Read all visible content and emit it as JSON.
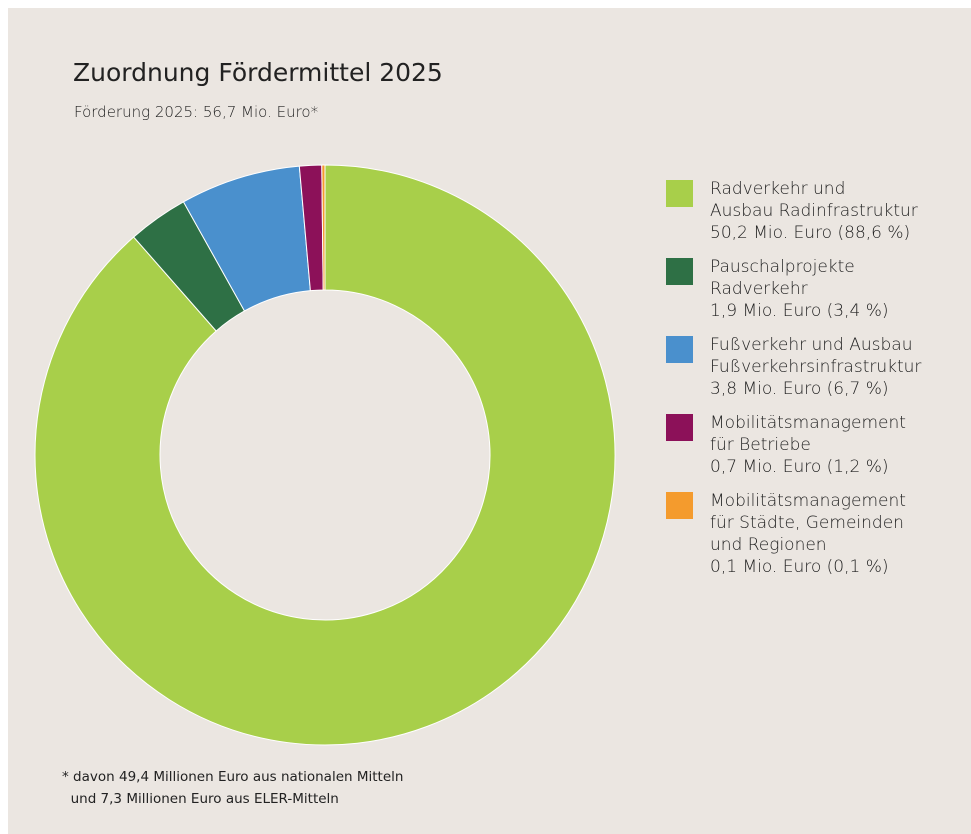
{
  "chart_data": {
    "type": "donut",
    "title": "Zuordnung Fördermittel 2025",
    "subtitle": "Förderung 2025: 56,7 Mio. Euro*",
    "series": [
      {
        "name": "Radverkehr und\nAusbau Radinfrastruktur",
        "color": "#a8cf4a"
      },
      {
        "name": "Pauschalprojekte\nRadverkehr",
        "color": "#2e7045"
      },
      {
        "name": "Fußverkehr und Ausbau\nFußverkehrsinfrastruktur",
        "color": "#4a90cd"
      },
      {
        "name": "Mobilitätsmanagement\nfür Betriebe",
        "color": "#8c1159"
      },
      {
        "name": "Mobilitätsmanagement\nfür Städte, Gemeinden\nund Regionen",
        "color": "#f49b2d"
      }
    ],
    "values": [
      50.2,
      1.9,
      3.8,
      0.7,
      0.1
    ],
    "value_labels": [
      "50,2 Mio. Euro (88,6 %)",
      "1,9 Mio. Euro (3,4 %)",
      "3,8 Mio. Euro (6,7 %)",
      "0,7 Mio. Euro (1,2 %)",
      "0,1 Mio. Euro (0,1 %)"
    ],
    "footnote": "* davon 49,4 Millionen Euro aus nationalen Mitteln\n  und 7,3 Millionen Euro aus ELER-Mitteln"
  }
}
